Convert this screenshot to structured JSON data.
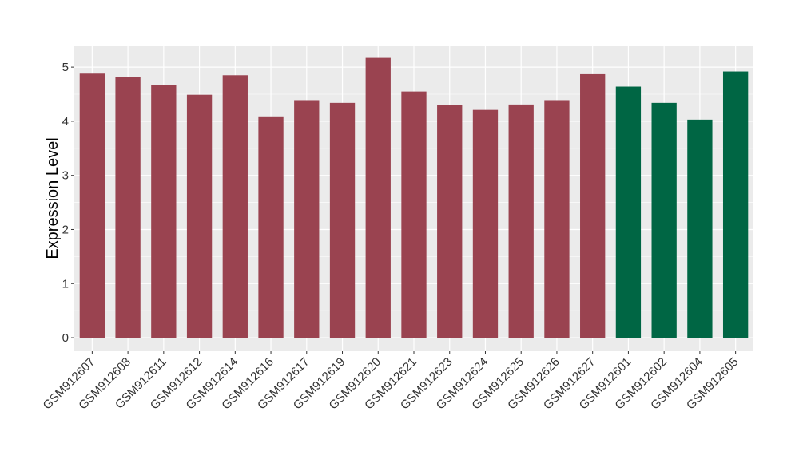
{
  "chart_data": {
    "type": "bar",
    "title": "",
    "xlabel": "",
    "ylabel": "Expression Level",
    "ylim": [
      -0.25,
      5.4
    ],
    "yticks": [
      0,
      1,
      2,
      3,
      4,
      5
    ],
    "grid": true,
    "legend": "none",
    "categories": [
      "GSM912607",
      "GSM912608",
      "GSM912611",
      "GSM912612",
      "GSM912614",
      "GSM912616",
      "GSM912617",
      "GSM912619",
      "GSM912620",
      "GSM912621",
      "GSM912623",
      "GSM912624",
      "GSM912625",
      "GSM912626",
      "GSM912627",
      "GSM912601",
      "GSM912602",
      "GSM912604",
      "GSM912605"
    ],
    "values": [
      4.88,
      4.82,
      4.67,
      4.49,
      4.85,
      4.09,
      4.39,
      4.34,
      5.17,
      4.55,
      4.3,
      4.21,
      4.31,
      4.39,
      4.87,
      4.64,
      4.34,
      4.03,
      4.92
    ],
    "groups": [
      0,
      0,
      0,
      0,
      0,
      0,
      0,
      0,
      0,
      0,
      0,
      0,
      0,
      0,
      0,
      1,
      1,
      1,
      1
    ],
    "colors": [
      "#9a4350",
      "#006644"
    ],
    "panel_background": "#ebebeb",
    "grid_color": "#ffffff"
  }
}
